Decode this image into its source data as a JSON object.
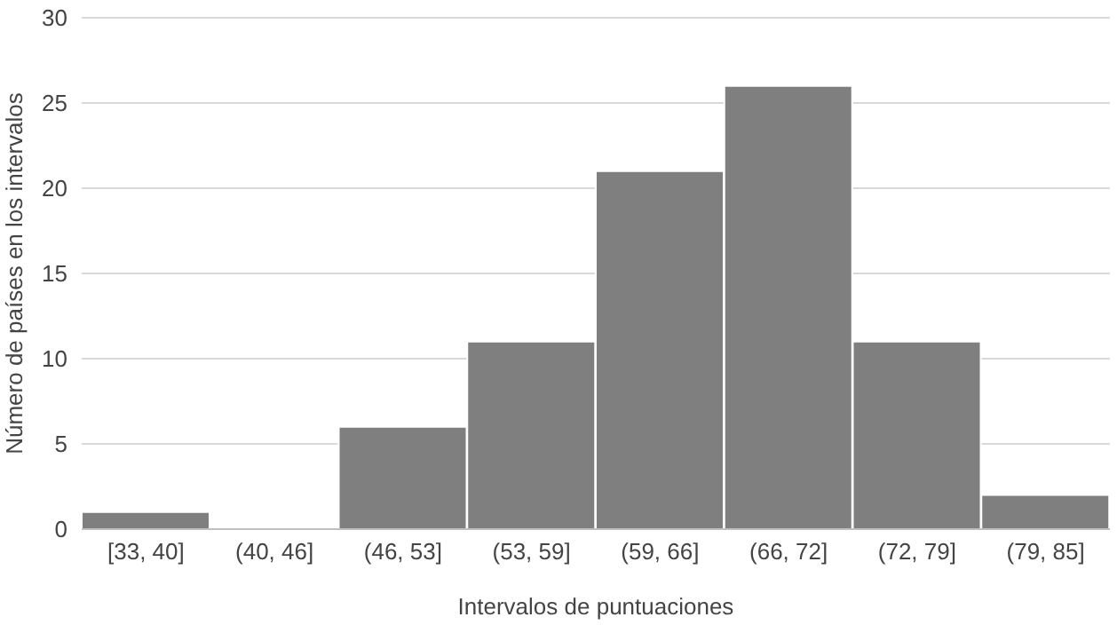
{
  "chart_data": {
    "type": "bar",
    "xlabel": "Intervalos de puntuaciones",
    "ylabel": "Número de países en los intervalos",
    "categories": [
      "[33, 40]",
      "(40, 46]",
      "(46, 53]",
      "(53, 59]",
      "(59, 66]",
      "(66, 72]",
      "(72, 79]",
      "(79, 85]"
    ],
    "values": [
      1,
      0,
      6,
      11,
      21,
      26,
      11,
      2
    ],
    "color": "#7f7f7f",
    "ylim": [
      0,
      30
    ],
    "yticks": [
      0,
      5,
      10,
      15,
      20,
      25,
      30
    ],
    "grid": "y"
  }
}
